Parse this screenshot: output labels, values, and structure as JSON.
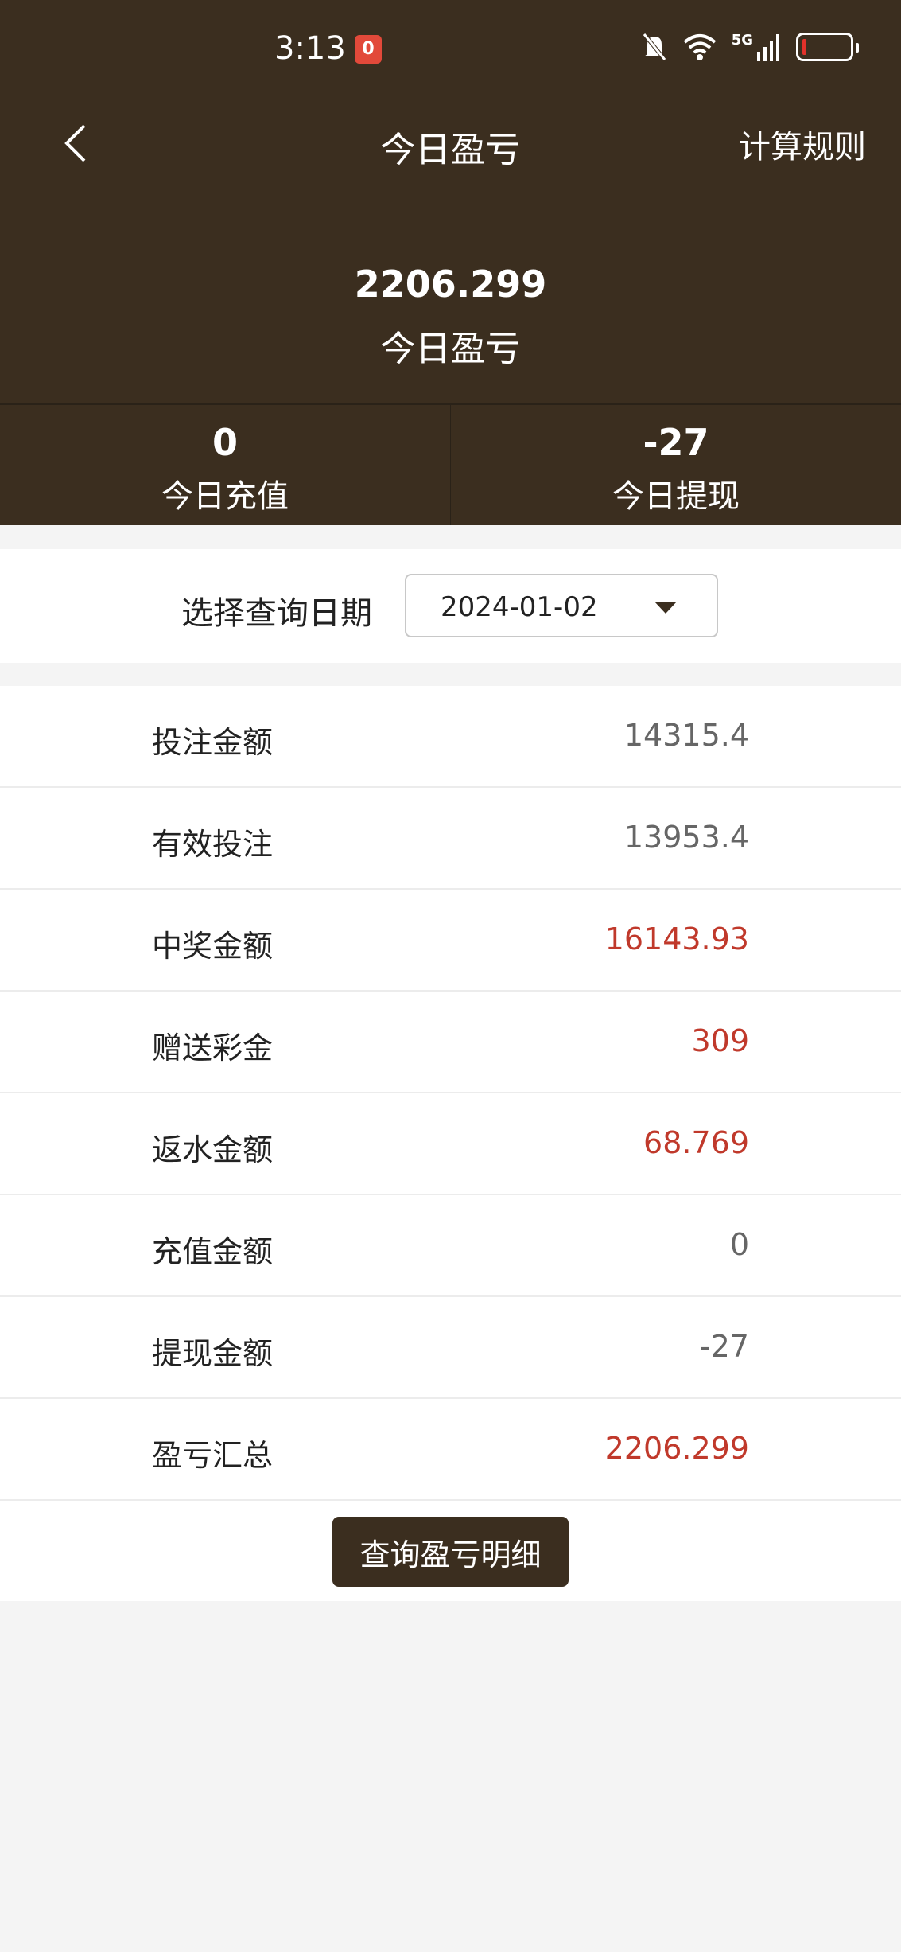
{
  "status_bar": {
    "time": "3:13",
    "badge": "0",
    "network": "5G",
    "icons": [
      "bell-off-icon",
      "wifi-icon",
      "signal-icon",
      "battery-low-icon"
    ]
  },
  "header": {
    "title": "今日盈亏",
    "rules_link": "计算规则",
    "back_icon": "chevron-left-icon"
  },
  "summary": {
    "value": "2206.299",
    "label": "今日盈亏"
  },
  "stats": [
    {
      "value": "0",
      "label": "今日充值"
    },
    {
      "value": "-27",
      "label": "今日提现"
    }
  ],
  "date_filter": {
    "label": "选择查询日期",
    "value": "2024-01-02"
  },
  "rows": [
    {
      "label": "投注金额",
      "value": "14315.4",
      "highlight": false
    },
    {
      "label": "有效投注",
      "value": "13953.4",
      "highlight": false
    },
    {
      "label": "中奖金额",
      "value": "16143.93",
      "highlight": true
    },
    {
      "label": "赠送彩金",
      "value": "309",
      "highlight": true
    },
    {
      "label": "返水金额",
      "value": "68.769",
      "highlight": true
    },
    {
      "label": "充值金额",
      "value": "0",
      "highlight": false
    },
    {
      "label": "提现金额",
      "value": "-27",
      "highlight": false
    },
    {
      "label": "盈亏汇总",
      "value": "2206.299",
      "highlight": true
    }
  ],
  "detail_button": "查询盈亏明细",
  "colors": {
    "header_bg": "#3b2e1f",
    "highlight": "#c0392b",
    "badge": "#e2493a"
  }
}
